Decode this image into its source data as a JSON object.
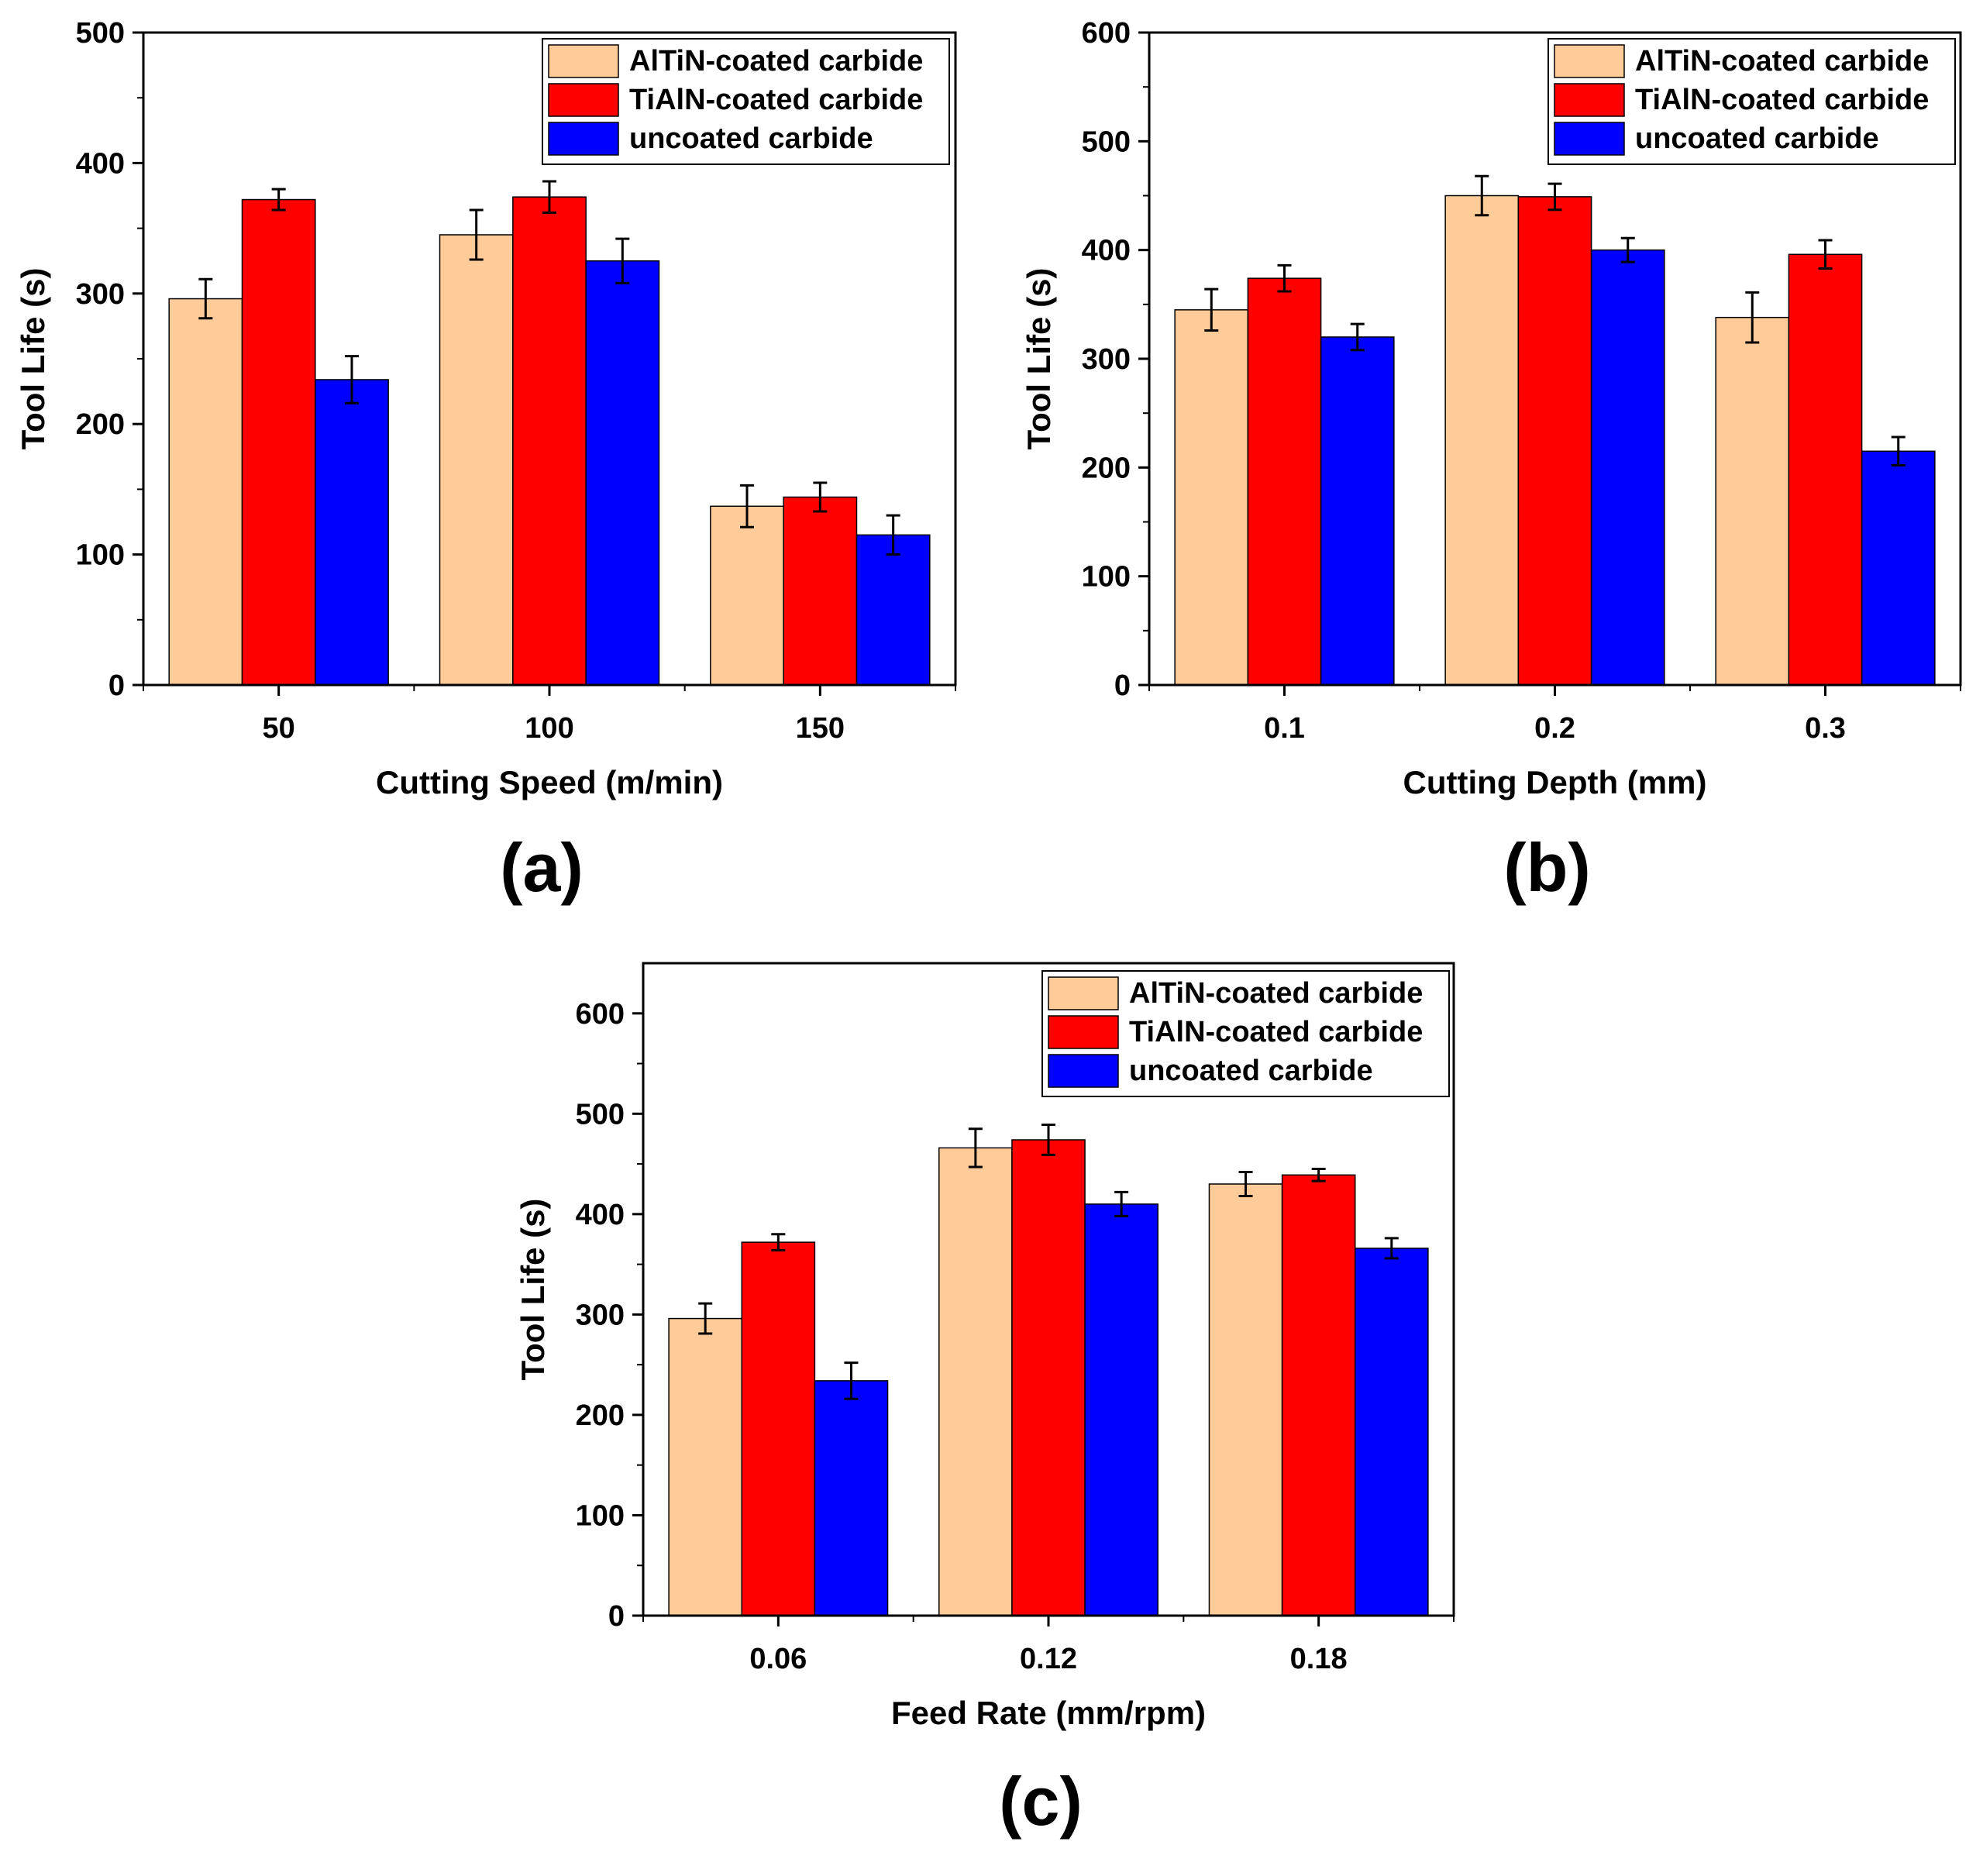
{
  "legend_labels": [
    "AlTiN-coated carbide",
    "TiAlN-coated carbide",
    "uncoated carbide"
  ],
  "colors": {
    "altin": "#FFCC99",
    "tialn": "#FF0000",
    "uncoated": "#0000FF",
    "axis": "#000000"
  },
  "chart_data": [
    {
      "type": "bar",
      "panel_label": "(a)",
      "xlabel": "Cutting Speed (m/min)",
      "ylabel": "Tool Life (s)",
      "categories": [
        "50",
        "100",
        "150"
      ],
      "ylim": [
        0,
        500
      ],
      "yticks": [
        0,
        100,
        200,
        300,
        400,
        500
      ],
      "legend_position": "top-right",
      "series": [
        {
          "name": "AlTiN-coated carbide",
          "color": "#FFCC99",
          "values": [
            296,
            345,
            137
          ],
          "errors": [
            15,
            19,
            16
          ]
        },
        {
          "name": "TiAlN-coated carbide",
          "color": "#FF0000",
          "values": [
            372,
            374,
            144
          ],
          "errors": [
            8,
            12,
            11
          ]
        },
        {
          "name": "uncoated carbide",
          "color": "#0000FF",
          "values": [
            234,
            325,
            115
          ],
          "errors": [
            18,
            17,
            15
          ]
        }
      ]
    },
    {
      "type": "bar",
      "panel_label": "(b)",
      "xlabel": "Cutting Depth (mm)",
      "ylabel": "Tool Life (s)",
      "categories": [
        "0.1",
        "0.2",
        "0.3"
      ],
      "ylim": [
        0,
        600
      ],
      "yticks": [
        0,
        100,
        200,
        300,
        400,
        500,
        600
      ],
      "legend_position": "top-right",
      "series": [
        {
          "name": "AlTiN-coated carbide",
          "color": "#FFCC99",
          "values": [
            345,
            450,
            338
          ],
          "errors": [
            19,
            18,
            23
          ]
        },
        {
          "name": "TiAlN-coated carbide",
          "color": "#FF0000",
          "values": [
            374,
            449,
            396
          ],
          "errors": [
            12,
            12,
            13
          ]
        },
        {
          "name": "uncoated carbide",
          "color": "#0000FF",
          "values": [
            320,
            400,
            215
          ],
          "errors": [
            12,
            11,
            13
          ]
        }
      ]
    },
    {
      "type": "bar",
      "panel_label": "(c)",
      "xlabel": "Feed Rate (mm/rpm)",
      "ylabel": "Tool Life (s)",
      "categories": [
        "0.06",
        "0.12",
        "0.18"
      ],
      "ylim": [
        0,
        650
      ],
      "yticks": [
        0,
        100,
        200,
        300,
        400,
        500,
        600
      ],
      "legend_position": "top-right",
      "series": [
        {
          "name": "AlTiN-coated carbide",
          "color": "#FFCC99",
          "values": [
            296,
            466,
            430
          ],
          "errors": [
            15,
            19,
            12
          ]
        },
        {
          "name": "TiAlN-coated carbide",
          "color": "#FF0000",
          "values": [
            372,
            474,
            439
          ],
          "errors": [
            8,
            15,
            6
          ]
        },
        {
          "name": "uncoated carbide",
          "color": "#0000FF",
          "values": [
            234,
            410,
            366
          ],
          "errors": [
            18,
            12,
            10
          ]
        }
      ]
    }
  ]
}
